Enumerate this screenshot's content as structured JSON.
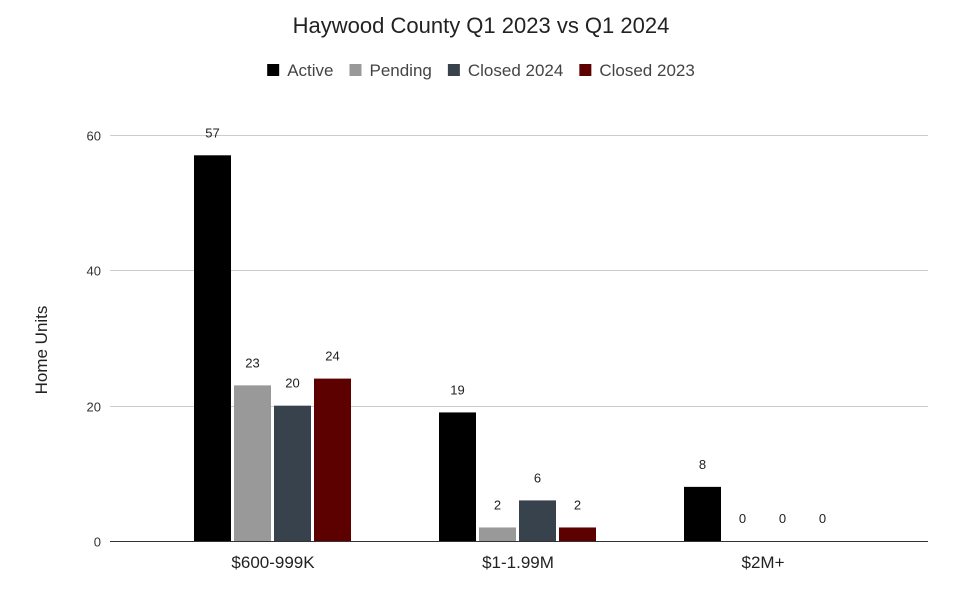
{
  "chart_data": {
    "type": "bar",
    "title": "Haywood County Q1 2023 vs Q1 2024",
    "xlabel": "",
    "ylabel": "Home Units",
    "ylim": [
      0,
      60
    ],
    "yticks": [
      0,
      20,
      40,
      60
    ],
    "grid": true,
    "legend_position": "top",
    "categories": [
      "$600-999K",
      "$1-1.99M",
      "$2M+"
    ],
    "series": [
      {
        "name": "Active",
        "color": "#000000",
        "values": [
          57,
          19,
          8
        ]
      },
      {
        "name": "Pending",
        "color": "#999999",
        "values": [
          23,
          2,
          0
        ]
      },
      {
        "name": "Closed 2024",
        "color": "#37424c",
        "values": [
          20,
          6,
          0
        ]
      },
      {
        "name": "Closed 2023",
        "color": "#5c0000",
        "values": [
          24,
          2,
          0
        ]
      }
    ]
  }
}
